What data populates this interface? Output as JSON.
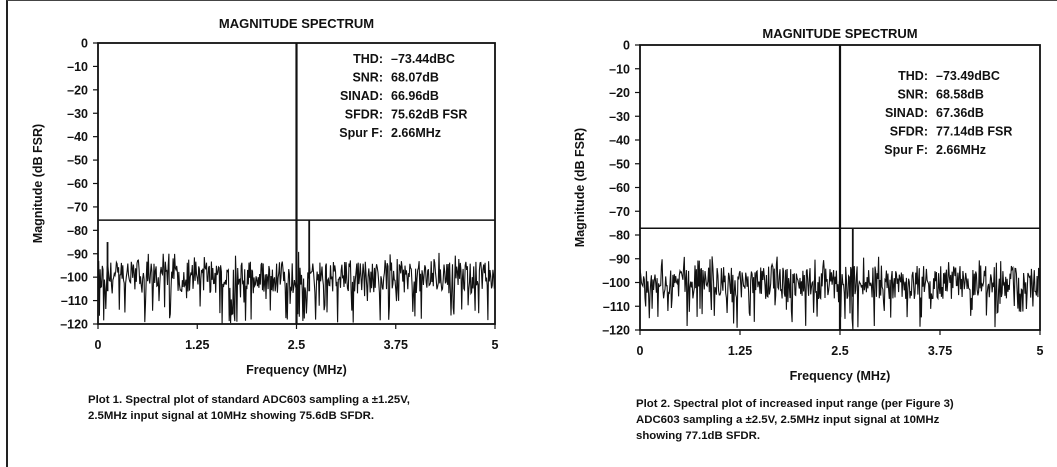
{
  "chart_data": [
    {
      "type": "line",
      "title": "MAGNITUDE SPECTRUM",
      "xlabel": "Frequency (MHz)",
      "ylabel": "Magnitude (dB FSR)",
      "xlim": [
        0,
        5
      ],
      "ylim": [
        -120,
        0
      ],
      "x_ticks": [
        "0",
        "1.25",
        "2.5",
        "3.75",
        "5"
      ],
      "y_ticks": [
        "0",
        "–10",
        "–20",
        "–30",
        "–40",
        "–50",
        "–60",
        "–70",
        "–80",
        "–90",
        "–100",
        "–110",
        "–120"
      ],
      "threshold_line_db": -75.62,
      "noise_floor_db": -100,
      "fundamental": {
        "x": 2.5,
        "y": 0
      },
      "spurs": [
        {
          "x": 2.66,
          "y": -75.62
        },
        {
          "x": 0.12,
          "y": -85
        }
      ],
      "stats": [
        {
          "label": "THD:",
          "value": "–73.44dBC"
        },
        {
          "label": "SNR:",
          "value": "68.07dB"
        },
        {
          "label": "SINAD:",
          "value": "66.96dB"
        },
        {
          "label": "SFDR:",
          "value": "75.62dB FSR"
        },
        {
          "label": "Spur F:",
          "value": "2.66MHz"
        }
      ],
      "caption": "Plot 1. Spectral plot of standard ADC603 sampling a ±1.25V,\n2.5MHz input signal at 10MHz showing 75.6dB SFDR.",
      "grid": false,
      "line_color": "#111111"
    },
    {
      "type": "line",
      "title": "MAGNITUDE SPECTRUM",
      "xlabel": "Frequency (MHz)",
      "ylabel": "Magnitude (dB FSR)",
      "xlim": [
        0,
        5
      ],
      "ylim": [
        -120,
        0
      ],
      "x_ticks": [
        "0",
        "1.25",
        "2.5",
        "3.75",
        "5"
      ],
      "y_ticks": [
        "0",
        "–10",
        "–20",
        "–30",
        "–40",
        "–50",
        "–60",
        "–70",
        "–80",
        "–90",
        "–100",
        "–110",
        "–120"
      ],
      "threshold_line_db": -77.14,
      "noise_floor_db": -100,
      "fundamental": {
        "x": 2.5,
        "y": 0
      },
      "spurs": [
        {
          "x": 2.66,
          "y": -77.14
        }
      ],
      "stats": [
        {
          "label": "THD:",
          "value": "–73.49dBC"
        },
        {
          "label": "SNR:",
          "value": "68.58dB"
        },
        {
          "label": "SINAD:",
          "value": "67.36dB"
        },
        {
          "label": "SFDR:",
          "value": "77.14dB FSR"
        },
        {
          "label": "Spur F:",
          "value": "2.66MHz"
        }
      ],
      "caption": "Plot 2. Spectral plot of increased input range (per Figure 3)\nADC603 sampling a ±2.5V, 2.5MHz input signal at 10MHz\nshowing 77.1dB SFDR.",
      "grid": false,
      "line_color": "#111111"
    }
  ]
}
